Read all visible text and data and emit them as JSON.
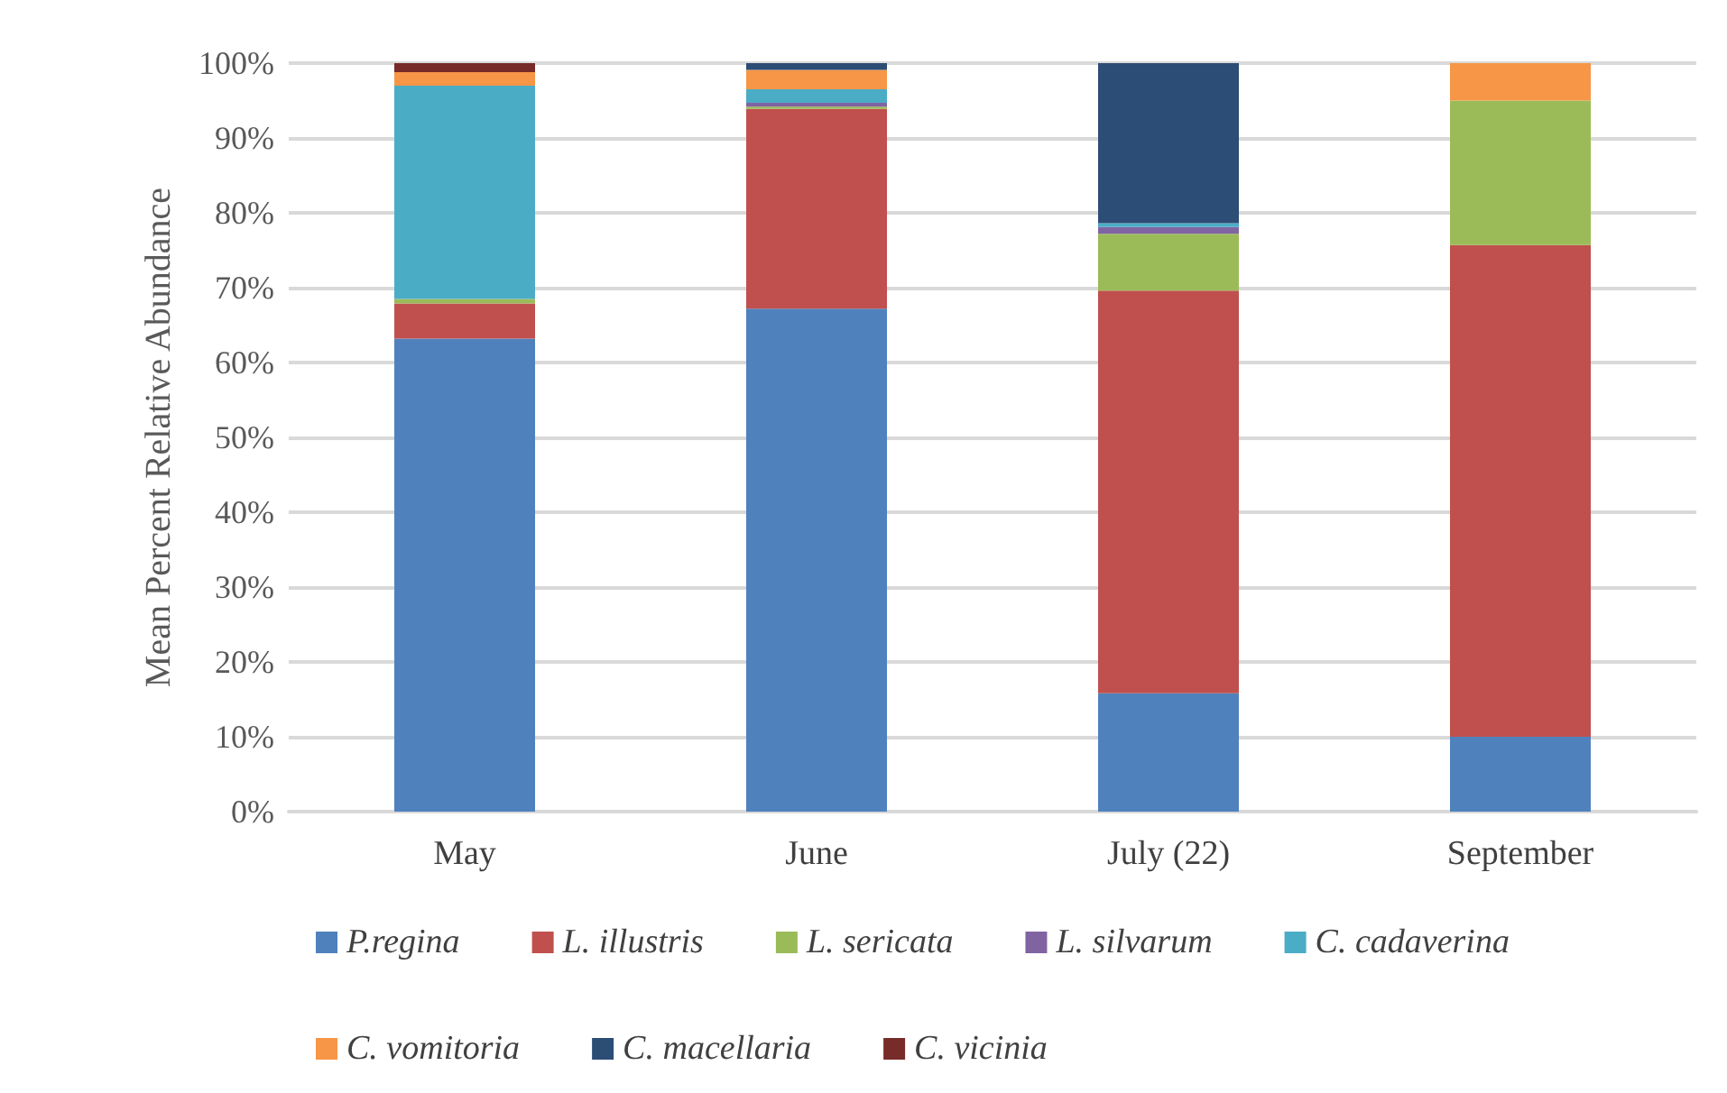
{
  "chart_data": {
    "type": "bar",
    "stacked": true,
    "ylabel": "Mean Percent Relative Abundance",
    "categories": [
      "May",
      "June",
      "July (22)",
      "September"
    ],
    "series": [
      {
        "name": "P.regina",
        "color": "#4f81bd",
        "values": [
          63.2,
          67.2,
          15.8,
          10.0
        ]
      },
      {
        "name": "L. illustris",
        "color": "#c0504d",
        "values": [
          4.7,
          26.7,
          53.8,
          65.7
        ]
      },
      {
        "name": "L. sericata",
        "color": "#9bbb59",
        "values": [
          0.6,
          0.3,
          7.6,
          19.3
        ]
      },
      {
        "name": "L. silvarum",
        "color": "#8064a2",
        "values": [
          0,
          0.5,
          0.9,
          0
        ]
      },
      {
        "name": "C. cadaverina",
        "color": "#4bacc6",
        "values": [
          28.5,
          1.8,
          0.5,
          0
        ]
      },
      {
        "name": "C. vomitoria",
        "color": "#f79646",
        "values": [
          1.8,
          2.6,
          0,
          5.0
        ]
      },
      {
        "name": "C. macellaria",
        "color": "#2c4d75",
        "values": [
          0,
          0.9,
          21.4,
          0
        ]
      },
      {
        "name": "C. vicinia",
        "color": "#772c2a",
        "values": [
          1.2,
          0,
          0,
          0
        ]
      }
    ],
    "ylim": [
      0,
      100
    ],
    "yticks": [
      {
        "value": 0,
        "label": "0%"
      },
      {
        "value": 10,
        "label": "10%"
      },
      {
        "value": 20,
        "label": "20%"
      },
      {
        "value": 30,
        "label": "30%"
      },
      {
        "value": 40,
        "label": "40%"
      },
      {
        "value": 50,
        "label": "50%"
      },
      {
        "value": 60,
        "label": "60%"
      },
      {
        "value": 70,
        "label": "70%"
      },
      {
        "value": 80,
        "label": "80%"
      },
      {
        "value": 90,
        "label": "90%"
      },
      {
        "value": 100,
        "label": "100%"
      }
    ],
    "grid": "y",
    "legend": "bottom"
  }
}
